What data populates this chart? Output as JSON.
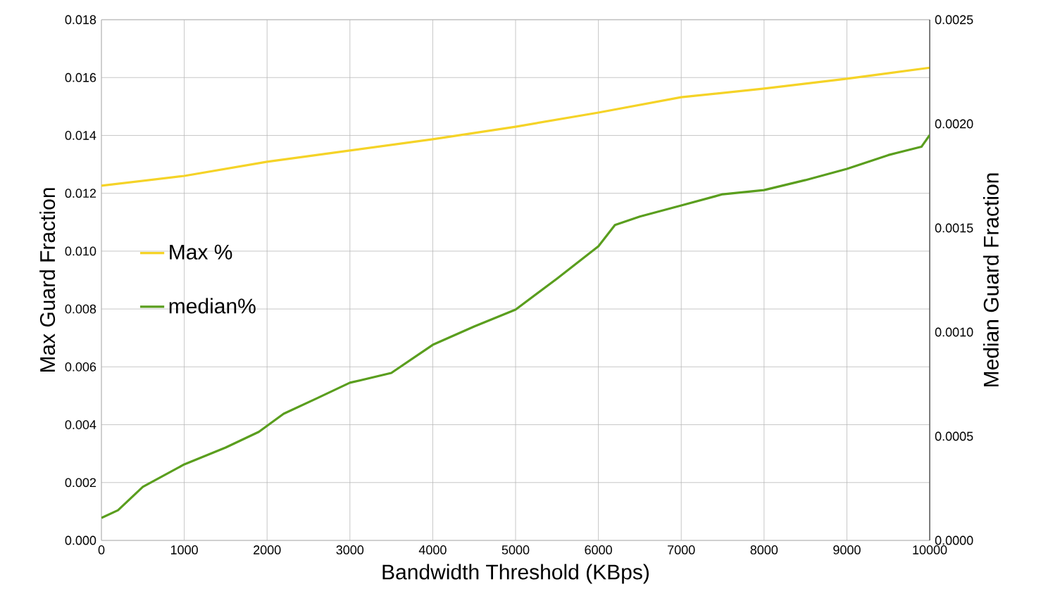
{
  "chart_data": {
    "type": "line",
    "xlabel": "Bandwidth Threshold (KBps)",
    "ylabel": "Max Guard Fraction",
    "y2label": "Median Guard Fraction",
    "xlim": [
      0,
      10000
    ],
    "xticks": [
      0,
      1000,
      2000,
      3000,
      4000,
      5000,
      6000,
      7000,
      8000,
      9000,
      10000
    ],
    "ylim": [
      0,
      0.018
    ],
    "yticks": [
      {
        "value": 0,
        "label": "0.000"
      },
      {
        "value": 0.002,
        "label": "0.002"
      },
      {
        "value": 0.004,
        "label": "0.004"
      },
      {
        "value": 0.006,
        "label": "0.006"
      },
      {
        "value": 0.008,
        "label": "0.008"
      },
      {
        "value": 0.01,
        "label": "0.010"
      },
      {
        "value": 0.012,
        "label": "0.012"
      },
      {
        "value": 0.014,
        "label": "0.014"
      },
      {
        "value": 0.016,
        "label": "0.016"
      },
      {
        "value": 0.018,
        "label": "0.018"
      }
    ],
    "y2lim": [
      0,
      0.0025
    ],
    "y2ticks": [
      {
        "value": 0,
        "label": "0.0000"
      },
      {
        "value": 0.0005,
        "label": "0.0005"
      },
      {
        "value": 0.001,
        "label": "0.0010"
      },
      {
        "value": 0.0015,
        "label": "0.0015"
      },
      {
        "value": 0.002,
        "label": "0.0020"
      },
      {
        "value": 0.0025,
        "label": "0.0025"
      }
    ],
    "grid": true,
    "legend": "left",
    "marker": "none",
    "line_style": "solid",
    "series": [
      {
        "name": "Max %",
        "color": "#f5d327",
        "x": [
          0,
          1000,
          2000,
          3000,
          4000,
          5000,
          6000,
          7000,
          8000,
          9000,
          10000
        ],
        "values": [
          0.01226,
          0.0126,
          0.01309,
          0.01348,
          0.01387,
          0.0143,
          0.01479,
          0.01532,
          0.01562,
          0.01596,
          0.01634
        ]
      },
      {
        "name": "median%",
        "color": "#5a9e1e",
        "axis": "y2",
        "x": [
          0,
          200,
          500,
          1000,
          1500,
          1900,
          2200,
          2600,
          3000,
          3500,
          4000,
          4500,
          5000,
          5500,
          6000,
          6200,
          6500,
          7000,
          7500,
          8000,
          8500,
          9000,
          9500,
          9900,
          10000
        ],
        "values": [
          0.000108,
          0.000145,
          0.000257,
          0.000365,
          0.000446,
          0.000521,
          0.000608,
          0.000682,
          0.000757,
          0.000804,
          0.000939,
          0.001027,
          0.001108,
          0.001257,
          0.001412,
          0.001514,
          0.001555,
          0.001608,
          0.001662,
          0.001682,
          0.00173,
          0.001784,
          0.00185,
          0.00189,
          0.001946
        ]
      }
    ]
  }
}
